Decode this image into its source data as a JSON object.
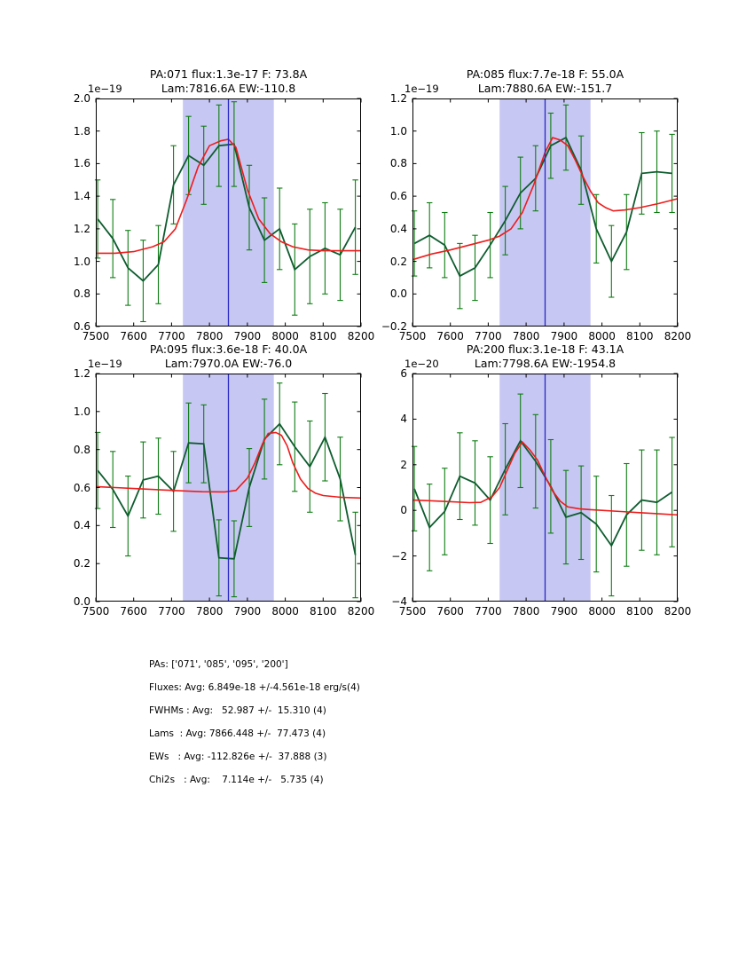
{
  "colors": {
    "band": "#c7c7f3",
    "center_line": "#2727c4",
    "data_line": "#0e5c2f",
    "error_bar": "#0e7d12",
    "fit_line": "#ee1c1c",
    "axis": "#000000"
  },
  "chart_data": [
    {
      "type": "line+errorbar",
      "title_line1": "PA:071 flux:1.3e-17 F: 73.8A",
      "title_line2": "Lam:7816.6A EW:-110.8",
      "offset_label": "1e−19",
      "xlabel": "",
      "ylabel": "",
      "xlim": [
        7500,
        8200
      ],
      "ylim": [
        0.6,
        2.0
      ],
      "x_ticks": [
        7500,
        7600,
        7700,
        7800,
        7900,
        8000,
        8100,
        8200
      ],
      "x_tick_labels": [
        "7500",
        "7600",
        "7700",
        "7800",
        "7900",
        "8000",
        "8100",
        "8200"
      ],
      "y_ticks": [
        0.6,
        0.8,
        1.0,
        1.2,
        1.4,
        1.6,
        1.8,
        2.0
      ],
      "y_tick_labels": [
        "0.6",
        "0.8",
        "1.0",
        "1.2",
        "1.4",
        "1.6",
        "1.8",
        "2.0"
      ],
      "band": [
        7730,
        7970
      ],
      "vline_x": 7850,
      "x": [
        7505,
        7545,
        7585,
        7625,
        7665,
        7705,
        7745,
        7785,
        7825,
        7865,
        7905,
        7945,
        7985,
        8025,
        8065,
        8105,
        8145,
        8185
      ],
      "y": [
        1.26,
        1.14,
        0.96,
        0.88,
        0.98,
        1.47,
        1.65,
        1.59,
        1.71,
        1.72,
        1.33,
        1.13,
        1.2,
        0.95,
        1.03,
        1.08,
        1.04,
        1.21
      ],
      "yerr": [
        0.24,
        0.24,
        0.23,
        0.25,
        0.24,
        0.24,
        0.24,
        0.24,
        0.25,
        0.26,
        0.26,
        0.26,
        0.25,
        0.28,
        0.29,
        0.28,
        0.28,
        0.29
      ],
      "fit_x": [
        7500,
        7550,
        7600,
        7650,
        7680,
        7710,
        7740,
        7770,
        7800,
        7830,
        7850,
        7870,
        7900,
        7930,
        7960,
        7990,
        8020,
        8060,
        8100,
        8150,
        8200
      ],
      "fit_y": [
        1.05,
        1.05,
        1.06,
        1.09,
        1.12,
        1.2,
        1.38,
        1.58,
        1.71,
        1.74,
        1.75,
        1.7,
        1.44,
        1.26,
        1.17,
        1.12,
        1.09,
        1.07,
        1.065,
        1.065,
        1.065
      ]
    },
    {
      "type": "line+errorbar",
      "title_line1": "PA:085 flux:7.7e-18 F: 55.0A",
      "title_line2": "Lam:7880.6A EW:-151.7",
      "offset_label": "1e−19",
      "xlabel": "",
      "ylabel": "",
      "xlim": [
        7500,
        8200
      ],
      "ylim": [
        -0.2,
        1.2
      ],
      "x_ticks": [
        7500,
        7600,
        7700,
        7800,
        7900,
        8000,
        8100,
        8200
      ],
      "x_tick_labels": [
        "7500",
        "7600",
        "7700",
        "7800",
        "7900",
        "8000",
        "8100",
        "8200"
      ],
      "y_ticks": [
        -0.2,
        0.0,
        0.2,
        0.4,
        0.6,
        0.8,
        1.0,
        1.2
      ],
      "y_tick_labels": [
        "−0.2",
        "0.0",
        "0.2",
        "0.4",
        "0.6",
        "0.8",
        "1.0",
        "1.2"
      ],
      "band": [
        7730,
        7970
      ],
      "vline_x": 7850,
      "x": [
        7505,
        7545,
        7585,
        7625,
        7665,
        7705,
        7745,
        7785,
        7825,
        7865,
        7905,
        7945,
        7985,
        8025,
        8065,
        8105,
        8145,
        8185
      ],
      "y": [
        0.31,
        0.36,
        0.3,
        0.11,
        0.16,
        0.3,
        0.45,
        0.62,
        0.71,
        0.91,
        0.96,
        0.76,
        0.4,
        0.2,
        0.38,
        0.74,
        0.75,
        0.74
      ],
      "yerr": [
        0.2,
        0.2,
        0.2,
        0.2,
        0.2,
        0.2,
        0.21,
        0.22,
        0.2,
        0.2,
        0.2,
        0.21,
        0.21,
        0.22,
        0.23,
        0.25,
        0.25,
        0.24
      ],
      "fit_x": [
        7500,
        7550,
        7600,
        7650,
        7700,
        7730,
        7760,
        7790,
        7820,
        7850,
        7870,
        7890,
        7910,
        7930,
        7950,
        7970,
        7990,
        8010,
        8030,
        8060,
        8100,
        8150,
        8200
      ],
      "fit_y": [
        0.21,
        0.245,
        0.27,
        0.3,
        0.33,
        0.355,
        0.4,
        0.5,
        0.67,
        0.87,
        0.96,
        0.945,
        0.91,
        0.82,
        0.72,
        0.63,
        0.56,
        0.53,
        0.51,
        0.515,
        0.53,
        0.555,
        0.585
      ]
    },
    {
      "type": "line+errorbar",
      "title_line1": "PA:095 flux:3.6e-18 F: 40.0A",
      "title_line2": "Lam:7970.0A EW:-76.0",
      "offset_label": "1e−19",
      "xlabel": "",
      "ylabel": "",
      "xlim": [
        7500,
        8200
      ],
      "ylim": [
        0.0,
        1.2
      ],
      "x_ticks": [
        7500,
        7600,
        7700,
        7800,
        7900,
        8000,
        8100,
        8200
      ],
      "x_tick_labels": [
        "7500",
        "7600",
        "7700",
        "7800",
        "7900",
        "8000",
        "8100",
        "8200"
      ],
      "y_ticks": [
        0.0,
        0.2,
        0.4,
        0.6,
        0.8,
        1.0,
        1.2
      ],
      "y_tick_labels": [
        "0.0",
        "0.2",
        "0.4",
        "0.6",
        "0.8",
        "1.0",
        "1.2"
      ],
      "band": [
        7730,
        7970
      ],
      "vline_x": 7850,
      "x": [
        7505,
        7545,
        7585,
        7625,
        7665,
        7705,
        7745,
        7785,
        7825,
        7865,
        7905,
        7945,
        7985,
        8025,
        8065,
        8105,
        8145,
        8185
      ],
      "y": [
        0.69,
        0.59,
        0.45,
        0.64,
        0.66,
        0.58,
        0.835,
        0.83,
        0.23,
        0.225,
        0.6,
        0.855,
        0.935,
        0.815,
        0.71,
        0.865,
        0.645,
        0.245
      ],
      "yerr": [
        0.2,
        0.2,
        0.21,
        0.2,
        0.2,
        0.21,
        0.21,
        0.205,
        0.2,
        0.2,
        0.205,
        0.21,
        0.215,
        0.235,
        0.24,
        0.23,
        0.22,
        0.225
      ],
      "fit_x": [
        7500,
        7600,
        7700,
        7780,
        7840,
        7870,
        7900,
        7920,
        7940,
        7955,
        7975,
        7990,
        8005,
        8020,
        8040,
        8060,
        8080,
        8100,
        8150,
        8200
      ],
      "fit_y": [
        0.605,
        0.595,
        0.585,
        0.578,
        0.577,
        0.585,
        0.65,
        0.73,
        0.83,
        0.885,
        0.89,
        0.875,
        0.82,
        0.73,
        0.645,
        0.595,
        0.57,
        0.558,
        0.548,
        0.545
      ]
    },
    {
      "type": "line+errorbar",
      "title_line1": "PA:200 flux:3.1e-18 F: 43.1A",
      "title_line2": "Lam:7798.6A EW:-1954.8",
      "offset_label": "1e−20",
      "xlabel": "",
      "ylabel": "",
      "xlim": [
        7500,
        8200
      ],
      "ylim": [
        -4,
        6
      ],
      "x_ticks": [
        7500,
        7600,
        7700,
        7800,
        7900,
        8000,
        8100,
        8200
      ],
      "x_tick_labels": [
        "7500",
        "7600",
        "7700",
        "7800",
        "7900",
        "8000",
        "8100",
        "8200"
      ],
      "y_ticks": [
        -4,
        -2,
        0,
        2,
        4,
        6
      ],
      "y_tick_labels": [
        "−4",
        "−2",
        "0",
        "2",
        "4",
        "6"
      ],
      "band": [
        7730,
        7970
      ],
      "vline_x": 7850,
      "x": [
        7505,
        7545,
        7585,
        7625,
        7665,
        7705,
        7745,
        7785,
        7825,
        7865,
        7905,
        7945,
        7985,
        8025,
        8065,
        8105,
        8145,
        8185
      ],
      "y": [
        0.95,
        -0.75,
        -0.05,
        1.5,
        1.2,
        0.45,
        1.8,
        3.05,
        2.15,
        1.05,
        -0.3,
        -0.1,
        -0.6,
        -1.55,
        -0.2,
        0.45,
        0.35,
        0.8
      ],
      "yerr": [
        1.85,
        1.9,
        1.9,
        1.9,
        1.85,
        1.9,
        2.0,
        2.05,
        2.05,
        2.05,
        2.05,
        2.05,
        2.1,
        2.2,
        2.25,
        2.2,
        2.3,
        2.4
      ],
      "fit_x": [
        7500,
        7550,
        7600,
        7650,
        7680,
        7710,
        7730,
        7750,
        7770,
        7790,
        7810,
        7830,
        7850,
        7870,
        7890,
        7910,
        7940,
        7970,
        8000,
        8050,
        8100,
        8150,
        8200
      ],
      "fit_y": [
        0.45,
        0.42,
        0.38,
        0.34,
        0.35,
        0.6,
        1.0,
        1.75,
        2.5,
        3.0,
        2.65,
        2.2,
        1.5,
        0.85,
        0.4,
        0.15,
        0.07,
        0.03,
        0.0,
        -0.05,
        -0.1,
        -0.15,
        -0.2
      ]
    }
  ],
  "summary": {
    "lines": [
      "PAs: ['071', '085', '095', '200']",
      "Fluxes: Avg: 6.849e-18 +/-4.561e-18 erg/s(4)",
      "FWHMs : Avg:   52.987 +/-  15.310 (4)",
      "Lams  : Avg: 7866.448 +/-  77.473 (4)",
      "EWs   : Avg: -112.826e +/-  37.888 (3)",
      "Chi2s   : Avg:    7.114e +/-   5.735 (4)"
    ]
  }
}
